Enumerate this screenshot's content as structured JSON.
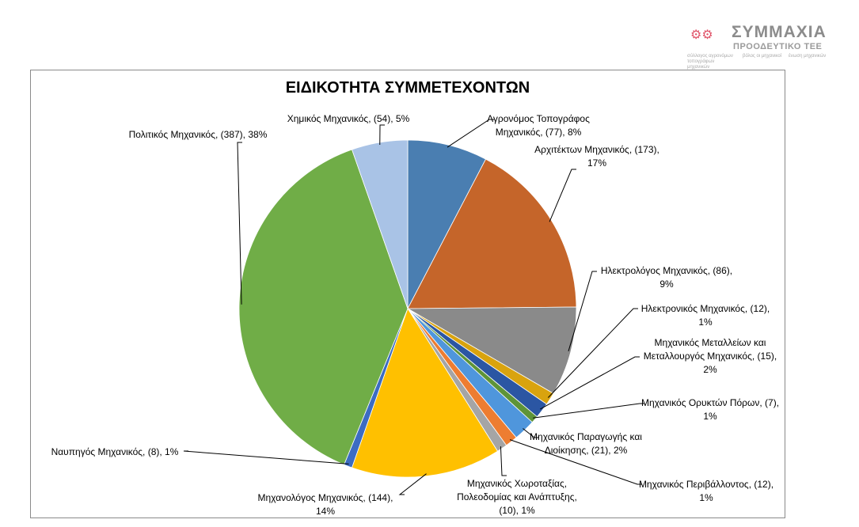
{
  "logo": {
    "main": "ΣΥΜΜΑΧΙΑ",
    "sub": "ΠΡΟΟΔΕΥΤΙΚΟ ΤΕΕ",
    "partners": [
      "σύλλογος αγρονόμων τοπογράφων μηχανικών",
      "βόλος οι μηχανικοί",
      "ένωση μηχανικών"
    ]
  },
  "chart_data": {
    "type": "pie",
    "title": "ΕΙΔΙΚΟΤΗΤΑ ΣΥΜΜΕΤΕΧΟΝΤΩΝ",
    "start_angle": "top, clockwise",
    "categories": [
      "Αγρονόμος Τοπογράφος Μηχανικός",
      "Αρχιτέκτων Μηχανικός",
      "Ηλεκτρολόγος Μηχανικός",
      "Ηλεκτρονικός Μηχανικός",
      "Μηχανικός Μεταλλείων και Μεταλλουργός Μηχανικός",
      "Μηχανικός Ορυκτών Πόρων",
      "Μηχανικός Παραγωγής και Διοίκησης",
      "Μηχανικός Περιβάλλοντος",
      "Μηχανικός Χωροταξίας, Πολεοδομίας και Ανάπτυξης",
      "Μηχανολόγος Μηχανικός",
      "Ναυπηγός Μηχανικός",
      "Πολιτικός Μηχανικός",
      "Χημικός Μηχανικός"
    ],
    "values": [
      77,
      173,
      86,
      12,
      15,
      7,
      21,
      12,
      10,
      144,
      8,
      387,
      54
    ],
    "percents": [
      "8%",
      "17%",
      "9%",
      "1%",
      "2%",
      "1%",
      "2%",
      "1%",
      "1%",
      "14%",
      "1%",
      "38%",
      "5%"
    ],
    "colors": [
      "#4a7eb1",
      "#c5652a",
      "#8a8a8a",
      "#d9a30e",
      "#2b56a3",
      "#5e9438",
      "#4f96dc",
      "#ed7d31",
      "#a5a5a5",
      "#ffc000",
      "#3c6cc2",
      "#70ad47",
      "#a9c3e6"
    ],
    "labels": [
      [
        "Αγρονόμος Τοπογράφος",
        "Μηχανικός, (77), 8%"
      ],
      [
        "Αρχιτέκτων Μηχανικός, (173),",
        "17%"
      ],
      [
        "Ηλεκτρολόγος Μηχανικός, (86),",
        "9%"
      ],
      [
        "Ηλεκτρονικός Μηχανικός, (12),",
        "1%"
      ],
      [
        "Μηχανικός Μεταλλείων  και",
        "Μεταλλουργός Μηχανικός, (15),",
        "2%"
      ],
      [
        "Μηχανικός Ορυκτών Πόρων, (7),",
        "1%"
      ],
      [
        "Μηχανικός Παραγωγής και",
        "Διοίκησης, (21), 2%"
      ],
      [
        "Μηχανικός Περιβάλλοντος, (12),",
        "1%"
      ],
      [
        "Μηχανικός Χωροταξίας,",
        "Πολεοδομίας και Ανάπτυξης,",
        "(10), 1%"
      ],
      [
        "Μηχανολόγος Μηχανικός, (144),",
        "14%"
      ],
      [
        "Ναυπηγός Μηχανικός, (8), 1%"
      ],
      [
        "Πολιτικός Μηχανικός, (387), 38%"
      ],
      [
        "Χημικός Μηχανικός, (54), 5%"
      ]
    ],
    "legend": "none"
  }
}
